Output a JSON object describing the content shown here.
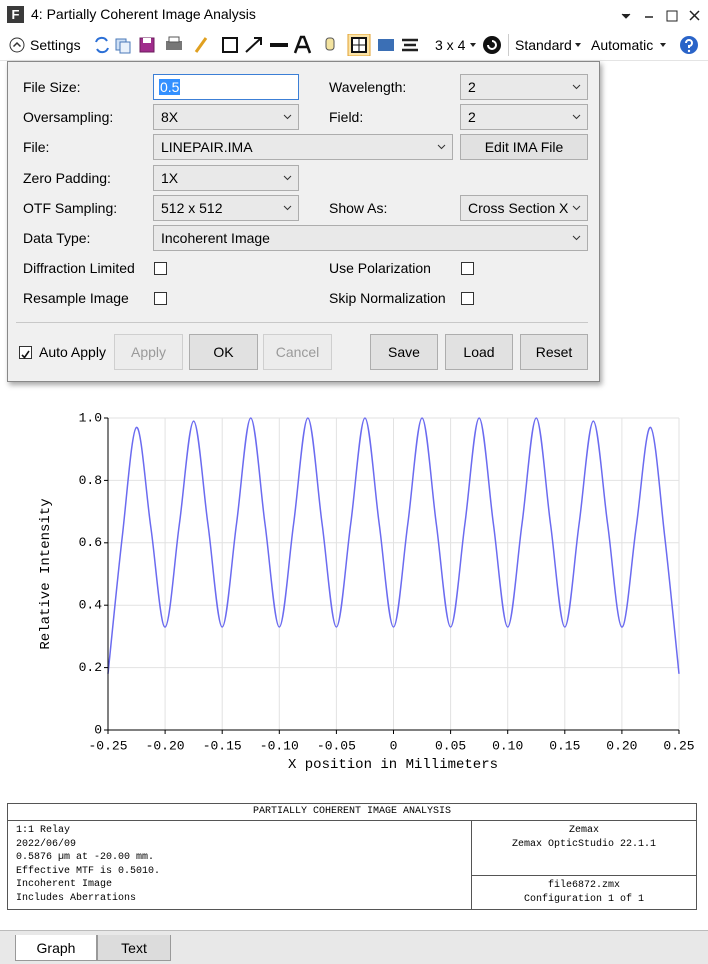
{
  "window": {
    "icon": "F",
    "title": "4: Partially Coherent Image Analysis"
  },
  "toolbar": {
    "settings": "Settings",
    "layout": "3 x 4",
    "standard": "Standard",
    "automatic": "Automatic"
  },
  "settings": {
    "file_size": {
      "label": "File Size:",
      "value": "0.5"
    },
    "wavelength": {
      "label": "Wavelength:",
      "value": "2"
    },
    "oversampling": {
      "label": "Oversampling:",
      "value": "8X"
    },
    "field": {
      "label": "Field:",
      "value": "2"
    },
    "file": {
      "label": "File:",
      "value": "LINEPAIR.IMA",
      "button": "Edit IMA File"
    },
    "zero_padding": {
      "label": "Zero Padding:",
      "value": "1X"
    },
    "otf_sampling": {
      "label": "OTF Sampling:",
      "value": "512 x 512"
    },
    "show_as": {
      "label": "Show As:",
      "value": "Cross Section X"
    },
    "data_type": {
      "label": "Data Type:",
      "value": "Incoherent Image"
    },
    "diffraction_limited": {
      "label": "Diffraction Limited",
      "checked": false
    },
    "use_polarization": {
      "label": "Use Polarization",
      "checked": false
    },
    "resample_image": {
      "label": "Resample Image",
      "checked": false
    },
    "skip_normalization": {
      "label": "Skip Normalization",
      "checked": false
    },
    "auto_apply": {
      "label": "Auto Apply",
      "checked": true
    },
    "buttons": {
      "apply": "Apply",
      "ok": "OK",
      "cancel": "Cancel",
      "save": "Save",
      "load": "Load",
      "reset": "Reset"
    }
  },
  "chart_data": {
    "type": "line",
    "x_label": "X position in Millimeters",
    "y_label": "Relative Intensity",
    "color": "#6b6bf0",
    "grid": true,
    "x": [
      -0.25,
      -0.2375,
      -0.225,
      -0.2125,
      -0.2,
      -0.1875,
      -0.175,
      -0.1625,
      -0.15,
      -0.1375,
      -0.125,
      -0.1125,
      -0.1,
      -0.0875,
      -0.075,
      -0.0625,
      -0.05,
      -0.0375,
      -0.025,
      -0.0125,
      0,
      0.0125,
      0.025,
      0.0375,
      0.05,
      0.0625,
      0.075,
      0.0875,
      0.1,
      0.1125,
      0.125,
      0.1375,
      0.15,
      0.1625,
      0.175,
      0.1875,
      0.2,
      0.2125,
      0.225,
      0.2375,
      0.25
    ],
    "values": [
      0.18,
      0.62,
      0.97,
      0.65,
      0.33,
      0.66,
      0.99,
      0.66,
      0.33,
      0.66,
      1.0,
      0.66,
      0.33,
      0.66,
      1.0,
      0.66,
      0.33,
      0.66,
      1.0,
      0.66,
      0.33,
      0.66,
      1.0,
      0.66,
      0.33,
      0.66,
      1.0,
      0.66,
      0.33,
      0.66,
      1.0,
      0.66,
      0.33,
      0.66,
      0.99,
      0.66,
      0.33,
      0.65,
      0.97,
      0.62,
      0.18
    ],
    "xlim": [
      -0.25,
      0.25
    ],
    "xticks": [
      -0.25,
      {
        "value": -0.2,
        "label": "-0.20"
      },
      -0.15,
      {
        "value": -0.1,
        "label": "-0.10"
      },
      -0.05,
      0,
      0.05,
      {
        "value": 0.1,
        "label": "0.10"
      },
      0.15,
      {
        "value": 0.2,
        "label": "0.20"
      },
      0.25
    ],
    "ylim": [
      0,
      1
    ],
    "yticks": [
      0,
      0.2,
      0.4,
      0.6,
      0.8,
      {
        "value": 1,
        "label": "1.0"
      }
    ]
  },
  "info": {
    "title": "PARTIALLY COHERENT IMAGE ANALYSIS",
    "lines": [
      "1:1 Relay",
      "2022/06/09",
      "0.5876 µm at -20.00 mm.",
      "Effective MTF is 0.5010.",
      "Incoherent Image",
      "Includes Aberrations"
    ],
    "company": [
      "Zemax",
      "Zemax OpticStudio 22.1.1"
    ],
    "file": [
      "file6872.zmx",
      "Configuration 1 of 1"
    ]
  },
  "tabs": [
    "Graph",
    "Text"
  ]
}
